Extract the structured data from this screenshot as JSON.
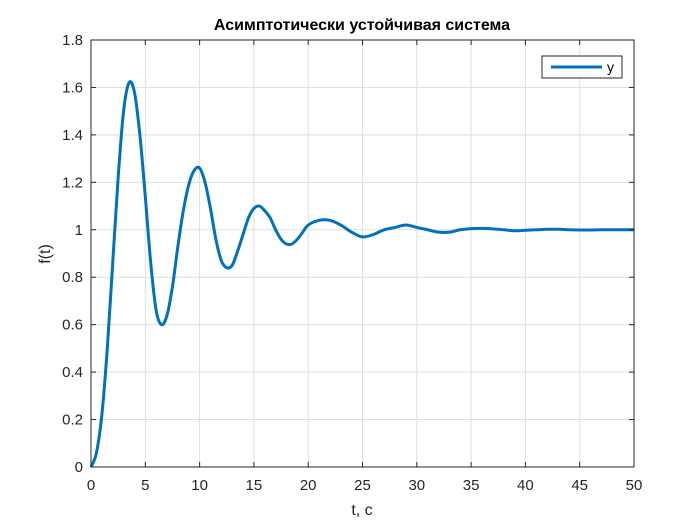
{
  "chart_data": {
    "type": "line",
    "title": "Асимптотически устойчивая система",
    "xlabel": "t, c",
    "ylabel": "f(t)",
    "xlim": [
      0,
      50
    ],
    "ylim": [
      0,
      1.8
    ],
    "xticks": [
      0,
      5,
      10,
      15,
      20,
      25,
      30,
      35,
      40,
      45,
      50
    ],
    "yticks": [
      0,
      0.2,
      0.4,
      0.6,
      0.8,
      1,
      1.2,
      1.4,
      1.6,
      1.8
    ],
    "xtick_labels": [
      "0",
      "5",
      "10",
      "15",
      "20",
      "25",
      "30",
      "35",
      "40",
      "45",
      "50"
    ],
    "ytick_labels": [
      "0",
      "0.2",
      "0.4",
      "0.6",
      "0.8",
      "1",
      "1.2",
      "1.4",
      "1.6",
      "1.8"
    ],
    "grid": true,
    "legend_position": "top-right",
    "series": [
      {
        "name": "y",
        "color": "#0072BD",
        "x": [
          0,
          0.5,
          1,
          1.5,
          2,
          2.5,
          3,
          3.5,
          4,
          4.5,
          5,
          5.5,
          6,
          6.5,
          7,
          7.5,
          8,
          8.5,
          9,
          9.5,
          10,
          10.5,
          11,
          11.5,
          12,
          12.5,
          13,
          13.5,
          14,
          14.5,
          15,
          15.5,
          16,
          16.5,
          17,
          17.5,
          18,
          18.5,
          19,
          19.5,
          20,
          21,
          22,
          23,
          24,
          25,
          26,
          27,
          28,
          29,
          30,
          31,
          32,
          33,
          34,
          35,
          36,
          37,
          38,
          39,
          40,
          41,
          42,
          43,
          44,
          45,
          46,
          47,
          48,
          49,
          50
        ],
        "y": [
          0,
          0.06,
          0.22,
          0.5,
          0.86,
          1.22,
          1.5,
          1.62,
          1.58,
          1.4,
          1.14,
          0.86,
          0.66,
          0.6,
          0.64,
          0.76,
          0.93,
          1.08,
          1.19,
          1.25,
          1.26,
          1.2,
          1.09,
          0.96,
          0.87,
          0.84,
          0.85,
          0.91,
          0.98,
          1.05,
          1.09,
          1.1,
          1.08,
          1.05,
          1.0,
          0.96,
          0.94,
          0.94,
          0.96,
          0.99,
          1.02,
          1.04,
          1.04,
          1.02,
          0.99,
          0.97,
          0.98,
          1.0,
          1.01,
          1.02,
          1.01,
          1.0,
          0.99,
          0.99,
          1.0,
          1.005,
          1.006,
          1.004,
          1.0,
          0.996,
          0.998,
          1.0,
          1.002,
          1.002,
          1.0,
          0.999,
          0.999,
          1.0,
          1.0,
          1.0,
          1.0
        ]
      }
    ]
  }
}
